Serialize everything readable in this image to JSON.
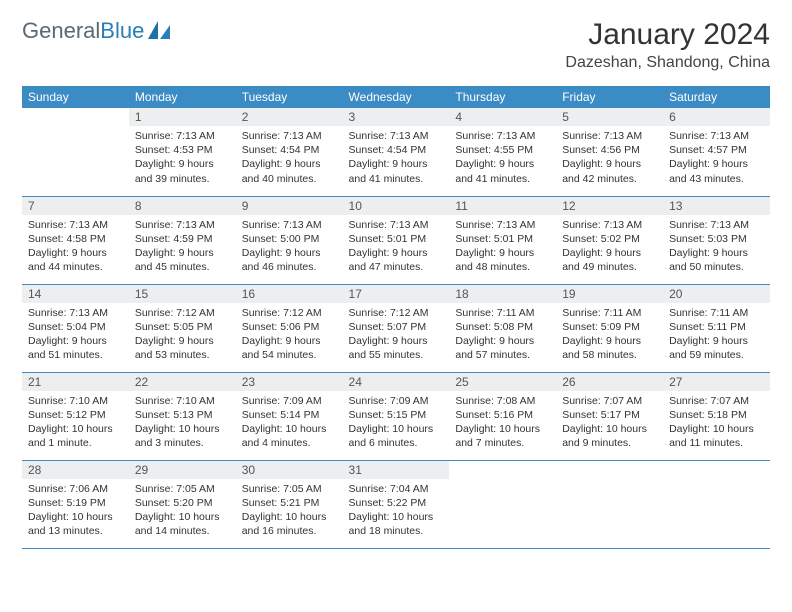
{
  "logo": {
    "text_gray": "General",
    "text_blue": "Blue"
  },
  "header": {
    "month_title": "January 2024",
    "location": "Dazeshan, Shandong, China"
  },
  "colors": {
    "header_bg": "#3b8bc4",
    "daynum_bg": "#eceeef",
    "row_border": "#3b8bc4",
    "logo_gray": "#5a6a72",
    "logo_blue": "#2a7fba"
  },
  "weekdays": [
    "Sunday",
    "Monday",
    "Tuesday",
    "Wednesday",
    "Thursday",
    "Friday",
    "Saturday"
  ],
  "weeks": [
    [
      {
        "blank": true
      },
      {
        "day": "1",
        "sunrise": "Sunrise: 7:13 AM",
        "sunset": "Sunset: 4:53 PM",
        "daylight": "Daylight: 9 hours and 39 minutes."
      },
      {
        "day": "2",
        "sunrise": "Sunrise: 7:13 AM",
        "sunset": "Sunset: 4:54 PM",
        "daylight": "Daylight: 9 hours and 40 minutes."
      },
      {
        "day": "3",
        "sunrise": "Sunrise: 7:13 AM",
        "sunset": "Sunset: 4:54 PM",
        "daylight": "Daylight: 9 hours and 41 minutes."
      },
      {
        "day": "4",
        "sunrise": "Sunrise: 7:13 AM",
        "sunset": "Sunset: 4:55 PM",
        "daylight": "Daylight: 9 hours and 41 minutes."
      },
      {
        "day": "5",
        "sunrise": "Sunrise: 7:13 AM",
        "sunset": "Sunset: 4:56 PM",
        "daylight": "Daylight: 9 hours and 42 minutes."
      },
      {
        "day": "6",
        "sunrise": "Sunrise: 7:13 AM",
        "sunset": "Sunset: 4:57 PM",
        "daylight": "Daylight: 9 hours and 43 minutes."
      }
    ],
    [
      {
        "day": "7",
        "sunrise": "Sunrise: 7:13 AM",
        "sunset": "Sunset: 4:58 PM",
        "daylight": "Daylight: 9 hours and 44 minutes."
      },
      {
        "day": "8",
        "sunrise": "Sunrise: 7:13 AM",
        "sunset": "Sunset: 4:59 PM",
        "daylight": "Daylight: 9 hours and 45 minutes."
      },
      {
        "day": "9",
        "sunrise": "Sunrise: 7:13 AM",
        "sunset": "Sunset: 5:00 PM",
        "daylight": "Daylight: 9 hours and 46 minutes."
      },
      {
        "day": "10",
        "sunrise": "Sunrise: 7:13 AM",
        "sunset": "Sunset: 5:01 PM",
        "daylight": "Daylight: 9 hours and 47 minutes."
      },
      {
        "day": "11",
        "sunrise": "Sunrise: 7:13 AM",
        "sunset": "Sunset: 5:01 PM",
        "daylight": "Daylight: 9 hours and 48 minutes."
      },
      {
        "day": "12",
        "sunrise": "Sunrise: 7:13 AM",
        "sunset": "Sunset: 5:02 PM",
        "daylight": "Daylight: 9 hours and 49 minutes."
      },
      {
        "day": "13",
        "sunrise": "Sunrise: 7:13 AM",
        "sunset": "Sunset: 5:03 PM",
        "daylight": "Daylight: 9 hours and 50 minutes."
      }
    ],
    [
      {
        "day": "14",
        "sunrise": "Sunrise: 7:13 AM",
        "sunset": "Sunset: 5:04 PM",
        "daylight": "Daylight: 9 hours and 51 minutes."
      },
      {
        "day": "15",
        "sunrise": "Sunrise: 7:12 AM",
        "sunset": "Sunset: 5:05 PM",
        "daylight": "Daylight: 9 hours and 53 minutes."
      },
      {
        "day": "16",
        "sunrise": "Sunrise: 7:12 AM",
        "sunset": "Sunset: 5:06 PM",
        "daylight": "Daylight: 9 hours and 54 minutes."
      },
      {
        "day": "17",
        "sunrise": "Sunrise: 7:12 AM",
        "sunset": "Sunset: 5:07 PM",
        "daylight": "Daylight: 9 hours and 55 minutes."
      },
      {
        "day": "18",
        "sunrise": "Sunrise: 7:11 AM",
        "sunset": "Sunset: 5:08 PM",
        "daylight": "Daylight: 9 hours and 57 minutes."
      },
      {
        "day": "19",
        "sunrise": "Sunrise: 7:11 AM",
        "sunset": "Sunset: 5:09 PM",
        "daylight": "Daylight: 9 hours and 58 minutes."
      },
      {
        "day": "20",
        "sunrise": "Sunrise: 7:11 AM",
        "sunset": "Sunset: 5:11 PM",
        "daylight": "Daylight: 9 hours and 59 minutes."
      }
    ],
    [
      {
        "day": "21",
        "sunrise": "Sunrise: 7:10 AM",
        "sunset": "Sunset: 5:12 PM",
        "daylight": "Daylight: 10 hours and 1 minute."
      },
      {
        "day": "22",
        "sunrise": "Sunrise: 7:10 AM",
        "sunset": "Sunset: 5:13 PM",
        "daylight": "Daylight: 10 hours and 3 minutes."
      },
      {
        "day": "23",
        "sunrise": "Sunrise: 7:09 AM",
        "sunset": "Sunset: 5:14 PM",
        "daylight": "Daylight: 10 hours and 4 minutes."
      },
      {
        "day": "24",
        "sunrise": "Sunrise: 7:09 AM",
        "sunset": "Sunset: 5:15 PM",
        "daylight": "Daylight: 10 hours and 6 minutes."
      },
      {
        "day": "25",
        "sunrise": "Sunrise: 7:08 AM",
        "sunset": "Sunset: 5:16 PM",
        "daylight": "Daylight: 10 hours and 7 minutes."
      },
      {
        "day": "26",
        "sunrise": "Sunrise: 7:07 AM",
        "sunset": "Sunset: 5:17 PM",
        "daylight": "Daylight: 10 hours and 9 minutes."
      },
      {
        "day": "27",
        "sunrise": "Sunrise: 7:07 AM",
        "sunset": "Sunset: 5:18 PM",
        "daylight": "Daylight: 10 hours and 11 minutes."
      }
    ],
    [
      {
        "day": "28",
        "sunrise": "Sunrise: 7:06 AM",
        "sunset": "Sunset: 5:19 PM",
        "daylight": "Daylight: 10 hours and 13 minutes."
      },
      {
        "day": "29",
        "sunrise": "Sunrise: 7:05 AM",
        "sunset": "Sunset: 5:20 PM",
        "daylight": "Daylight: 10 hours and 14 minutes."
      },
      {
        "day": "30",
        "sunrise": "Sunrise: 7:05 AM",
        "sunset": "Sunset: 5:21 PM",
        "daylight": "Daylight: 10 hours and 16 minutes."
      },
      {
        "day": "31",
        "sunrise": "Sunrise: 7:04 AM",
        "sunset": "Sunset: 5:22 PM",
        "daylight": "Daylight: 10 hours and 18 minutes."
      },
      {
        "blank": true
      },
      {
        "blank": true
      },
      {
        "blank": true
      }
    ]
  ]
}
